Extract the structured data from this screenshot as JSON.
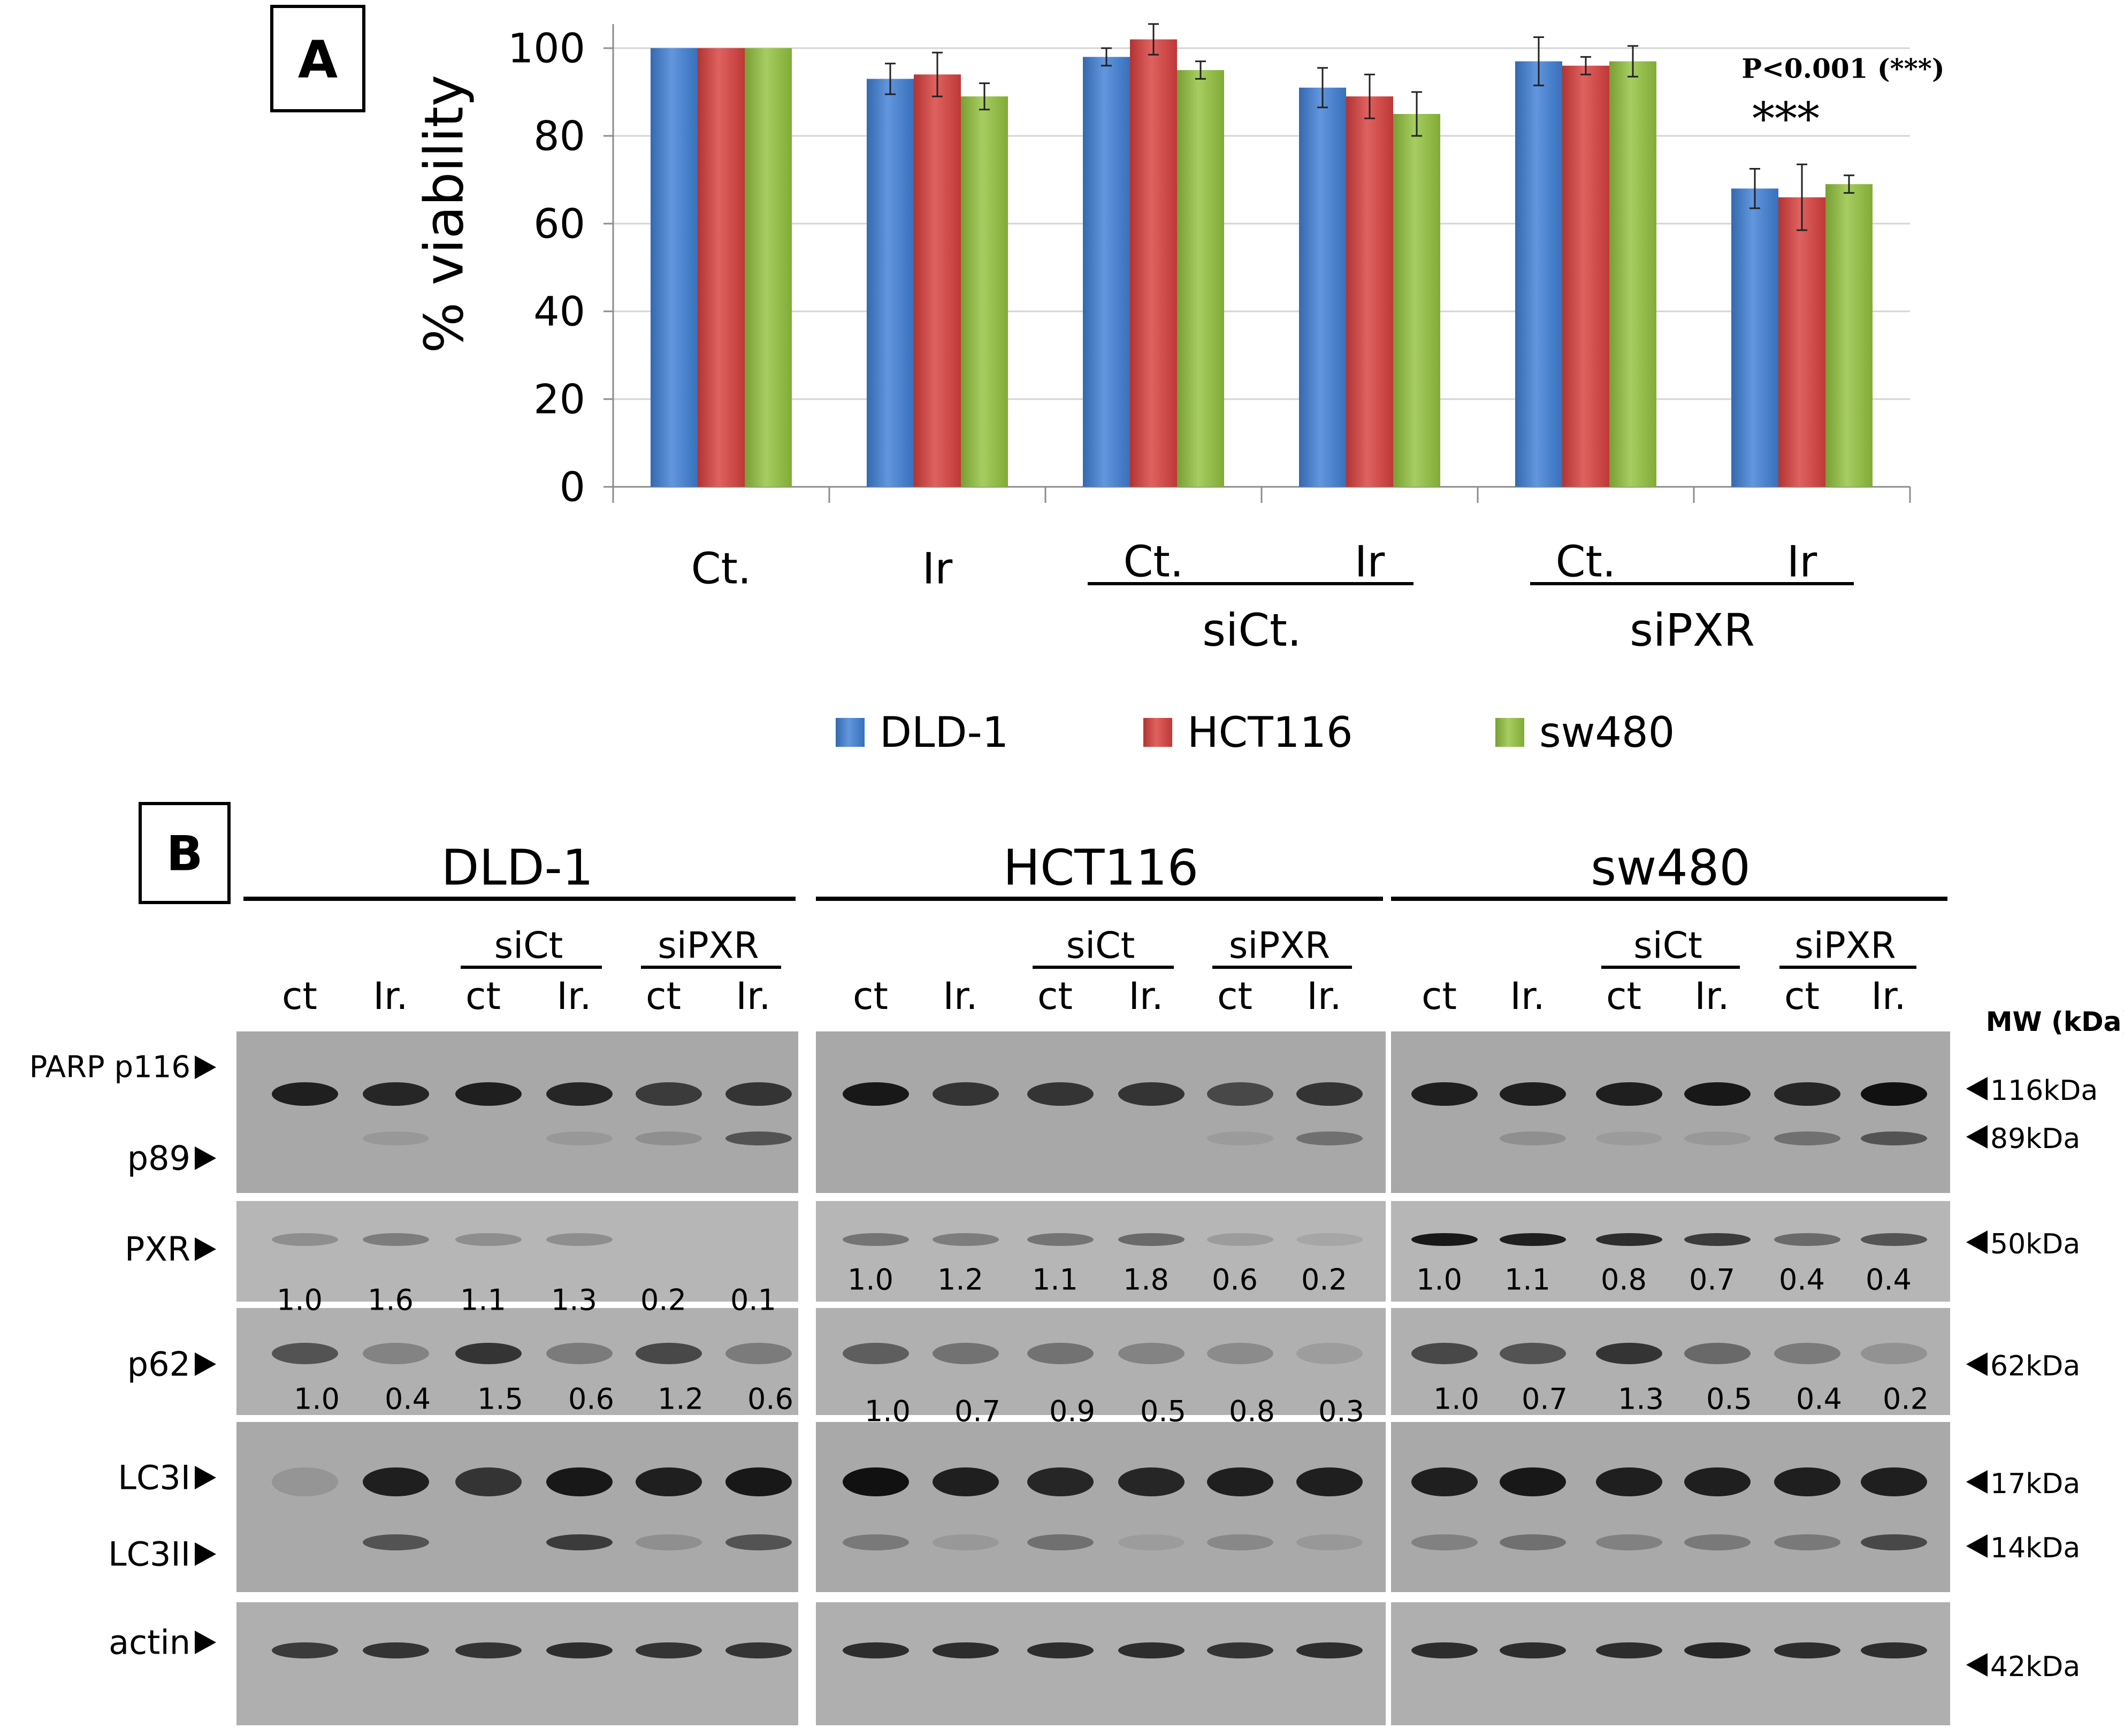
{
  "panel_a": {
    "label": "A",
    "significance": "P<0.001 (***)",
    "stars": "***",
    "group_labels": {
      "sict": "siCt.",
      "sipxr": "siPXR"
    }
  },
  "chart_data": {
    "type": "bar",
    "title": "",
    "xlabel": "",
    "ylabel": "% viability",
    "ylim": [
      0,
      100
    ],
    "yticks": [
      0,
      20,
      40,
      60,
      80,
      100
    ],
    "grid": true,
    "legend_position": "bottom",
    "categories": [
      "Ct.",
      "Ir",
      "Ct.",
      "Ir",
      "Ct.",
      "Ir"
    ],
    "series": [
      {
        "name": "DLD-1",
        "color": "#3f7fd6",
        "values": [
          100,
          93,
          98,
          91,
          97,
          68
        ],
        "errors": [
          0,
          3.5,
          2,
          4.5,
          5.5,
          4.5
        ]
      },
      {
        "name": "HCT116",
        "color": "#d8403d",
        "values": [
          100,
          94,
          102,
          89,
          96,
          66
        ],
        "errors": [
          0,
          5,
          3.5,
          5,
          2,
          7.5
        ]
      },
      {
        "name": "sw480",
        "color": "#93c23e",
        "values": [
          100,
          89,
          95,
          85,
          97,
          69
        ],
        "errors": [
          0,
          3,
          2,
          5,
          3.5,
          2
        ]
      }
    ]
  },
  "panel_b": {
    "label": "B",
    "mw_header": "MW (kDa)",
    "cell_lines": [
      "DLD-1",
      "HCT116",
      "sw480"
    ],
    "lanes": [
      "ct",
      "Ir.",
      "ct",
      "Ir.",
      "ct",
      "Ir."
    ],
    "subgroups": [
      "siCt",
      "siPXR"
    ],
    "row_labels": [
      "PARP p116",
      "p89",
      "PXR",
      "p62",
      "LC3I",
      "LC3II",
      "actin"
    ],
    "mw_labels": [
      "116kDa",
      "89kDa",
      "50kDa",
      "62kDa",
      "17kDa",
      "14kDa",
      "42kDa"
    ],
    "pxr_ratios": [
      [
        "1.0",
        "1.6",
        "1.1",
        "1.3",
        "0.2",
        "0.1"
      ],
      [
        "1.0",
        "1.2",
        "1.1",
        "1.8",
        "0.6",
        "0.2"
      ],
      [
        "1.0",
        "1.1",
        "0.8",
        "0.7",
        "0.4",
        "0.4"
      ]
    ],
    "p62_ratios": [
      [
        "1.0",
        "0.4",
        "1.5",
        "0.6",
        "1.2",
        "0.6"
      ],
      [
        "1.0",
        "0.7",
        "0.9",
        "0.5",
        "0.8",
        "0.3"
      ],
      [
        "1.0",
        "0.7",
        "1.3",
        "0.5",
        "0.4",
        "0.2"
      ]
    ],
    "band_intensities": {
      "parp116": [
        [
          0.85,
          0.8,
          0.85,
          0.8,
          0.65,
          0.7
        ],
        [
          0.9,
          0.7,
          0.7,
          0.7,
          0.6,
          0.7
        ],
        [
          0.85,
          0.85,
          0.85,
          0.9,
          0.8,
          0.95
        ]
      ],
      "parp89": [
        [
          0,
          0.12,
          0,
          0.12,
          0.2,
          0.55
        ],
        [
          0,
          0,
          0,
          0,
          0.08,
          0.4
        ],
        [
          0,
          0.2,
          0.08,
          0.12,
          0.4,
          0.55
        ]
      ],
      "pxr": [
        [
          0.25,
          0.35,
          0.25,
          0.25,
          0,
          0
        ],
        [
          0.4,
          0.35,
          0.4,
          0.45,
          0.15,
          0.05
        ],
        [
          0.9,
          0.85,
          0.75,
          0.65,
          0.45,
          0.55
        ]
      ],
      "p62": [
        [
          0.55,
          0.3,
          0.7,
          0.35,
          0.6,
          0.35
        ],
        [
          0.5,
          0.4,
          0.4,
          0.3,
          0.25,
          0.1
        ],
        [
          0.6,
          0.55,
          0.7,
          0.45,
          0.35,
          0.2
        ]
      ],
      "lc3i": [
        [
          0.15,
          0.85,
          0.7,
          0.9,
          0.85,
          0.9
        ],
        [
          0.95,
          0.85,
          0.8,
          0.8,
          0.85,
          0.85
        ],
        [
          0.85,
          0.9,
          0.85,
          0.85,
          0.85,
          0.85
        ]
      ],
      "lc3ii": [
        [
          0,
          0.55,
          0,
          0.65,
          0.2,
          0.55
        ],
        [
          0.35,
          0.12,
          0.4,
          0.08,
          0.25,
          0.12
        ],
        [
          0.3,
          0.4,
          0.3,
          0.35,
          0.35,
          0.6
        ]
      ],
      "actin": [
        [
          0.65,
          0.7,
          0.7,
          0.75,
          0.7,
          0.7
        ],
        [
          0.75,
          0.75,
          0.75,
          0.75,
          0.7,
          0.75
        ],
        [
          0.75,
          0.75,
          0.75,
          0.8,
          0.75,
          0.75
        ]
      ]
    }
  }
}
